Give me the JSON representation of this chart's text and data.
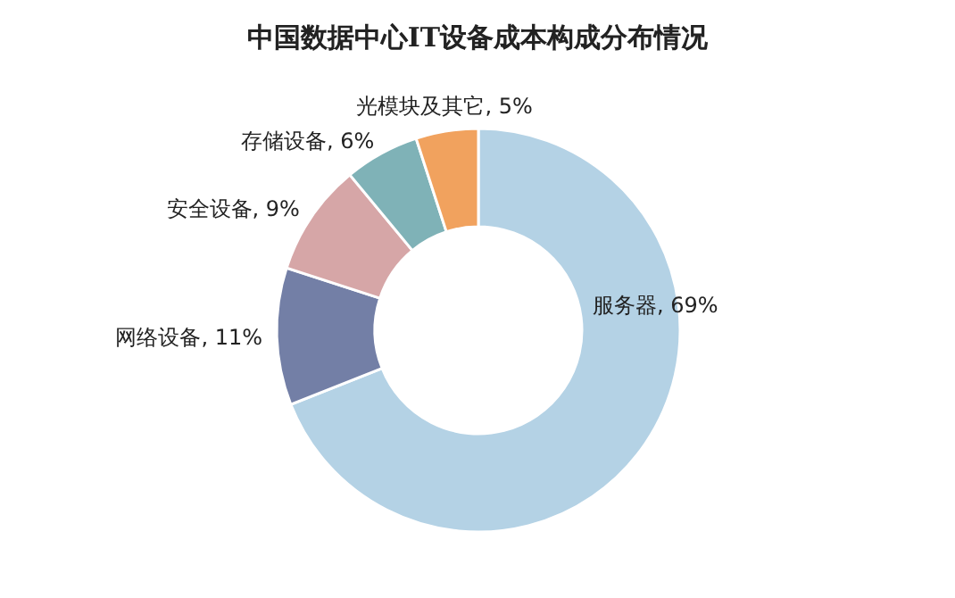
{
  "chart_data": {
    "type": "donut",
    "title": "中国数据中心IT设备成本构成分布情况",
    "categories": [
      "服务器",
      "网络设备",
      "安全设备",
      "存储设备",
      "光模块及其它"
    ],
    "values": [
      69,
      11,
      9,
      6,
      5
    ],
    "colors": [
      "#b4d2e5",
      "#737fa6",
      "#d6a6a7",
      "#7fb2b7",
      "#f1a25e"
    ],
    "value_labels": [
      ", 69%",
      ", 11%",
      ", 9%",
      ", 6%",
      ", 5%"
    ]
  }
}
